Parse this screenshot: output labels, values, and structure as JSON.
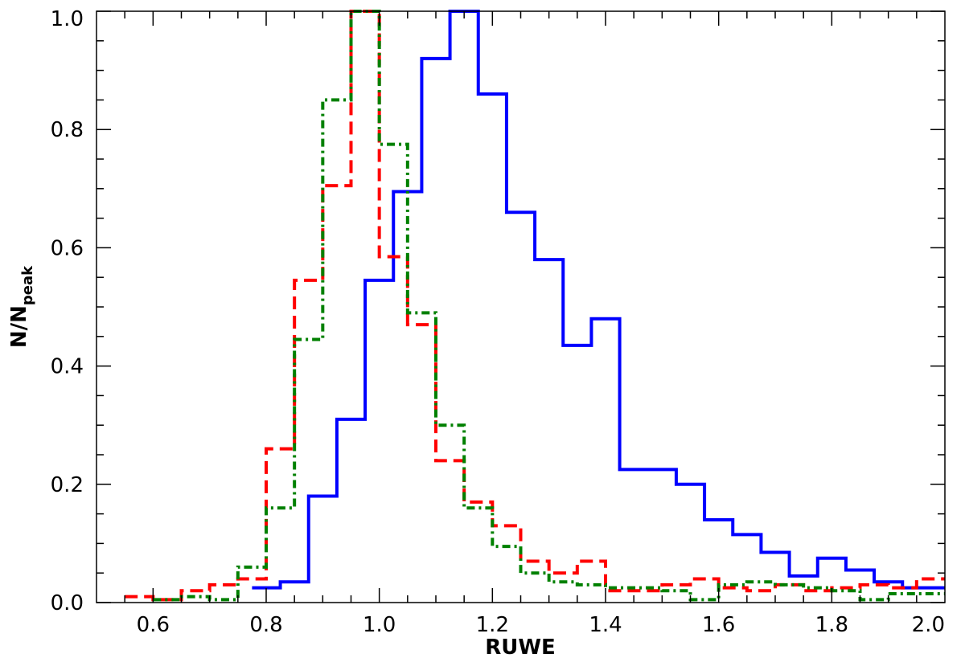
{
  "chart_data": {
    "type": "line",
    "title": "",
    "xlabel": "RUWE",
    "ylabel": "N/N",
    "ylabel_sub": "peak",
    "xlim": [
      0.5,
      2.0
    ],
    "ylim": [
      0.0,
      1.0
    ],
    "grid": false,
    "legend": "none",
    "x_ticks": [
      0.6,
      0.8,
      1.0,
      1.2,
      1.4,
      1.6,
      1.8,
      2.0
    ],
    "x_tick_labels": [
      "0.6",
      "0.8",
      "1.0",
      "1.2",
      "1.4",
      "1.6",
      "1.8",
      "2.0"
    ],
    "y_ticks": [
      0.0,
      0.2,
      0.4,
      0.6,
      0.8,
      1.0
    ],
    "y_tick_labels": [
      "0.0",
      "0.2",
      "0.4",
      "0.6",
      "0.8",
      "1.0"
    ],
    "step_edges": [
      0.55,
      0.6,
      0.65,
      0.7,
      0.75,
      0.8,
      0.85,
      0.9,
      0.95,
      1.0,
      1.05,
      1.1,
      1.15,
      1.2,
      1.25,
      1.3,
      1.35,
      1.4,
      1.45,
      1.5,
      1.55,
      1.6,
      1.65,
      1.7,
      1.75,
      1.8,
      1.85,
      1.9,
      1.95,
      2.0
    ],
    "series": [
      {
        "color": "#0000ff",
        "style": "solid",
        "bin_edges": [
          0.775,
          0.825,
          0.875,
          0.925,
          0.975,
          1.025,
          1.075,
          1.125,
          1.175,
          1.225,
          1.275,
          1.325,
          1.375,
          1.425,
          1.475,
          1.525,
          1.575,
          1.625,
          1.675,
          1.725,
          1.775,
          1.825,
          1.875,
          1.925,
          1.975,
          2.0
        ],
        "values": [
          0.025,
          0.035,
          0.18,
          0.31,
          0.545,
          0.695,
          0.92,
          1.0,
          0.86,
          0.66,
          0.58,
          0.435,
          0.48,
          0.225,
          0.225,
          0.2,
          0.14,
          0.115,
          0.085,
          0.045,
          0.075,
          0.055,
          0.035,
          0.025,
          0.025
        ]
      },
      {
        "color": "#ff0000",
        "style": "dashed",
        "bin_edges": [
          0.55,
          0.6,
          0.65,
          0.7,
          0.75,
          0.8,
          0.85,
          0.9,
          0.95,
          1.0,
          1.05,
          1.1,
          1.15,
          1.2,
          1.25,
          1.3,
          1.35,
          1.4,
          1.45,
          1.5,
          1.55,
          1.6,
          1.65,
          1.7,
          1.75,
          1.8,
          1.85,
          1.9,
          1.95,
          2.0
        ],
        "values": [
          0.01,
          0.005,
          0.02,
          0.03,
          0.04,
          0.26,
          0.545,
          0.705,
          1.0,
          0.585,
          0.47,
          0.24,
          0.17,
          0.13,
          0.07,
          0.05,
          0.07,
          0.02,
          0.02,
          0.03,
          0.04,
          0.025,
          0.02,
          0.03,
          0.02,
          0.025,
          0.03,
          0.025,
          0.04
        ]
      },
      {
        "color": "#008000",
        "style": "dashdot",
        "bin_edges": [
          0.6,
          0.65,
          0.7,
          0.75,
          0.8,
          0.85,
          0.9,
          0.95,
          1.0,
          1.05,
          1.1,
          1.15,
          1.2,
          1.25,
          1.3,
          1.35,
          1.4,
          1.45,
          1.5,
          1.55,
          1.6,
          1.65,
          1.7,
          1.75,
          1.8,
          1.85,
          1.9,
          1.95,
          2.0
        ],
        "values": [
          0.005,
          0.01,
          0.005,
          0.06,
          0.16,
          0.445,
          0.85,
          1.0,
          0.775,
          0.49,
          0.3,
          0.16,
          0.095,
          0.05,
          0.035,
          0.03,
          0.025,
          0.025,
          0.02,
          0.005,
          0.03,
          0.035,
          0.03,
          0.025,
          0.02,
          0.005,
          0.015,
          0.015
        ]
      }
    ]
  }
}
